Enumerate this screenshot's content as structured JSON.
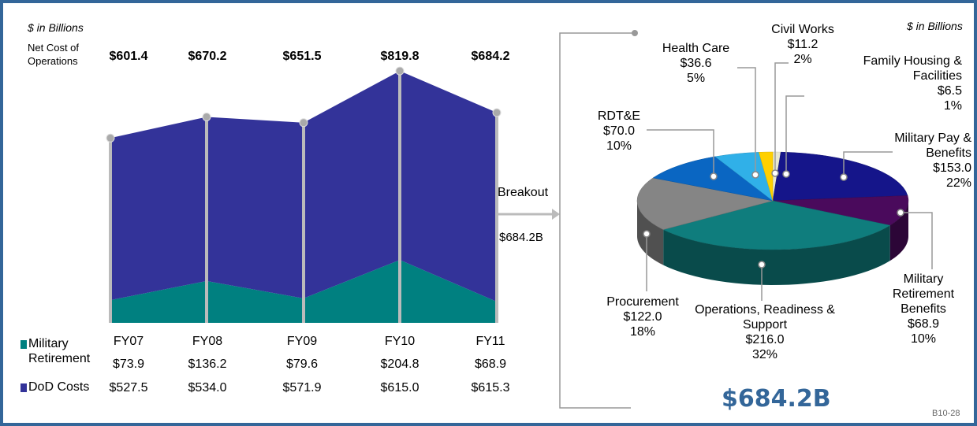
{
  "chart_data": [
    {
      "type": "area",
      "subtitle": "$ in Billions",
      "total_label": "Net Cost of Operations",
      "categories": [
        "FY07",
        "FY08",
        "FY09",
        "FY10",
        "FY11"
      ],
      "totals": [
        601.4,
        670.2,
        651.5,
        819.8,
        684.2
      ],
      "total_value_labels": [
        "$601.4",
        "$670.2",
        "$651.5",
        "$819.8",
        "$684.2"
      ],
      "series": [
        {
          "name": "Military Retirement",
          "color": "#008080",
          "values": [
            73.9,
            136.2,
            79.6,
            204.8,
            68.9
          ],
          "value_labels": [
            "$73.9",
            "$136.2",
            "$79.6",
            "$204.8",
            "$68.9"
          ]
        },
        {
          "name": "DoD Costs",
          "color": "#333399",
          "values": [
            527.5,
            534.0,
            571.9,
            615.0,
            615.3
          ],
          "value_labels": [
            "$527.5",
            "$534.0",
            "$571.9",
            "$615.0",
            "$615.3"
          ]
        }
      ],
      "ylim": [
        0,
        820
      ],
      "annotation": "Breakout"
    },
    {
      "type": "pie",
      "subtitle": "$ in Billions",
      "title": "$684.2B",
      "categories": [
        "Family Housing & Facilities",
        "Military Pay & Benefits",
        "Military Retirement Benefits",
        "Operations, Readiness & Support",
        "Procurement",
        "RDT&E",
        "Health Care",
        "Civil Works"
      ],
      "values": [
        6.5,
        153.0,
        68.9,
        216.0,
        122.0,
        70.0,
        36.6,
        11.2
      ],
      "value_labels": [
        "$6.5",
        "$153.0",
        "$68.9",
        "$216.0",
        "$122.0",
        "$70.0",
        "$36.6",
        "$11.2"
      ],
      "percent_labels": [
        "1%",
        "22%",
        "10%",
        "32%",
        "18%",
        "10%",
        "5%",
        "2%"
      ],
      "colors": [
        "#e8e8d0",
        "#15158a",
        "#4a0a5c",
        "#0f7d7d",
        "#858585",
        "#0a66c2",
        "#30b0e8",
        "#ffd000"
      ]
    }
  ],
  "footer": "B10-28"
}
